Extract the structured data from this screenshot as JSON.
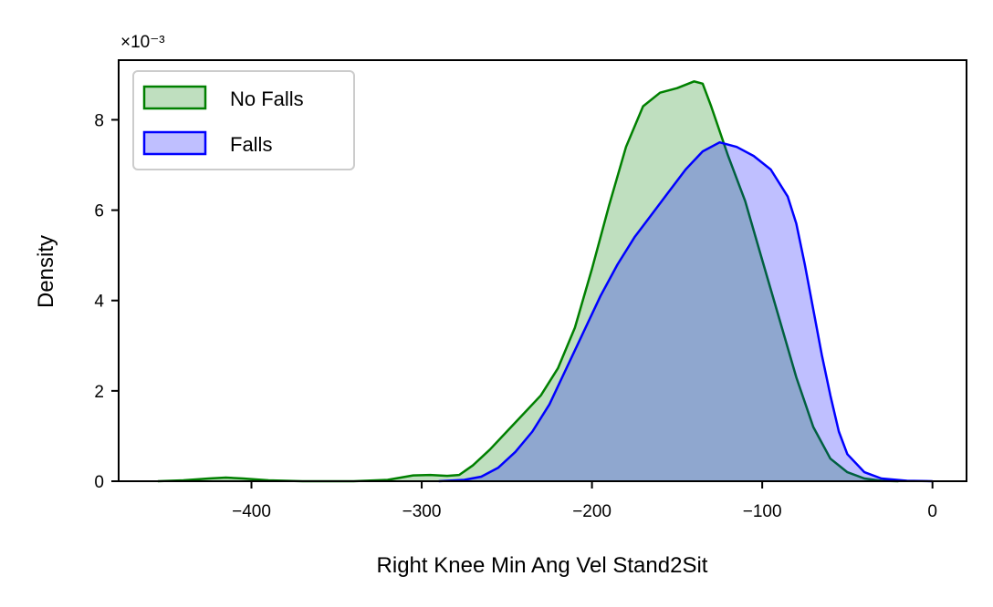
{
  "chart_data": {
    "type": "area",
    "title": "",
    "xlabel": "Right Knee Min Ang Vel Stand2Sit",
    "ylabel": "Density",
    "y_scale_label": "×10⁻³",
    "xlim": [
      -478,
      20
    ],
    "ylim": [
      0,
      0.00932
    ],
    "x_ticks": [
      -400,
      -300,
      -200,
      -100,
      0
    ],
    "x_tick_labels": [
      "−400",
      "−300",
      "−200",
      "−100",
      "0"
    ],
    "y_ticks": [
      0,
      0.002,
      0.004,
      0.006,
      0.008
    ],
    "y_tick_labels": [
      "0",
      "2",
      "4",
      "6",
      "8"
    ],
    "grid": false,
    "legend_position": "top-left",
    "series": [
      {
        "name": "No Falls",
        "line_color": "#008000",
        "fill_color": "#008000",
        "fill_opacity": 0.25,
        "points": [
          [
            -455,
            0.0
          ],
          [
            -440,
            2e-05
          ],
          [
            -425,
            6e-05
          ],
          [
            -415,
            8e-05
          ],
          [
            -405,
            6e-05
          ],
          [
            -390,
            2e-05
          ],
          [
            -370,
            0.0
          ],
          [
            -340,
            0.0
          ],
          [
            -320,
            3e-05
          ],
          [
            -305,
            0.00013
          ],
          [
            -295,
            0.00014
          ],
          [
            -285,
            0.00012
          ],
          [
            -278,
            0.00014
          ],
          [
            -270,
            0.00035
          ],
          [
            -260,
            0.0007
          ],
          [
            -250,
            0.0011
          ],
          [
            -240,
            0.0015
          ],
          [
            -230,
            0.0019
          ],
          [
            -220,
            0.0025
          ],
          [
            -210,
            0.0034
          ],
          [
            -200,
            0.0047
          ],
          [
            -190,
            0.0061
          ],
          [
            -180,
            0.0074
          ],
          [
            -170,
            0.0083
          ],
          [
            -160,
            0.0086
          ],
          [
            -150,
            0.0087
          ],
          [
            -140,
            0.00885
          ],
          [
            -135,
            0.0088
          ],
          [
            -130,
            0.0083
          ],
          [
            -120,
            0.0072
          ],
          [
            -110,
            0.0062
          ],
          [
            -100,
            0.0049
          ],
          [
            -90,
            0.0036
          ],
          [
            -80,
            0.0023
          ],
          [
            -70,
            0.0012
          ],
          [
            -60,
            0.0005
          ],
          [
            -50,
            0.0002
          ],
          [
            -40,
            6e-05
          ],
          [
            -30,
            1e-05
          ],
          [
            -20,
            0.0
          ]
        ]
      },
      {
        "name": "Falls",
        "line_color": "#0000ff",
        "fill_color": "#0000ff",
        "fill_opacity": 0.25,
        "points": [
          [
            -290,
            0.0
          ],
          [
            -275,
            3e-05
          ],
          [
            -265,
            0.0001
          ],
          [
            -255,
            0.0003
          ],
          [
            -245,
            0.00065
          ],
          [
            -235,
            0.0011
          ],
          [
            -225,
            0.0017
          ],
          [
            -215,
            0.0025
          ],
          [
            -205,
            0.0033
          ],
          [
            -195,
            0.0041
          ],
          [
            -185,
            0.0048
          ],
          [
            -175,
            0.0054
          ],
          [
            -165,
            0.0059
          ],
          [
            -155,
            0.0064
          ],
          [
            -145,
            0.0069
          ],
          [
            -135,
            0.0073
          ],
          [
            -125,
            0.0075
          ],
          [
            -115,
            0.0074
          ],
          [
            -105,
            0.0072
          ],
          [
            -95,
            0.0069
          ],
          [
            -85,
            0.0063
          ],
          [
            -80,
            0.0057
          ],
          [
            -75,
            0.0048
          ],
          [
            -70,
            0.0038
          ],
          [
            -65,
            0.0028
          ],
          [
            -60,
            0.0019
          ],
          [
            -55,
            0.0011
          ],
          [
            -50,
            0.0006
          ],
          [
            -40,
            0.0002
          ],
          [
            -30,
            6e-05
          ],
          [
            -15,
            1e-05
          ],
          [
            0,
            0.0
          ]
        ]
      }
    ]
  }
}
